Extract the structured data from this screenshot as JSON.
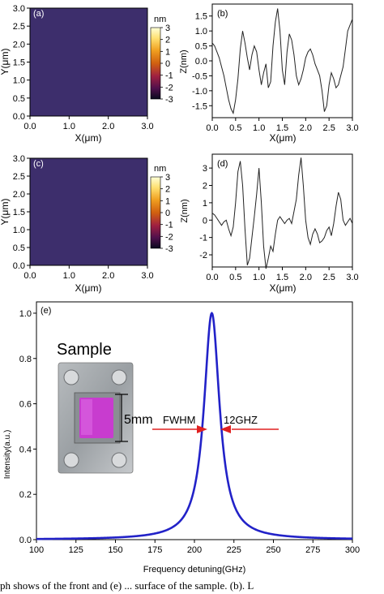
{
  "chart_data": [
    {
      "type": "heatmap",
      "panel_label": "(a)",
      "xlabel": "X(μm)",
      "ylabel": "Y(μm)",
      "xlim": [
        0,
        3
      ],
      "ylim": [
        0,
        3
      ],
      "xticks": [
        "0.0",
        "1.0",
        "2.0",
        "3.0"
      ],
      "yticks": [
        "0.0",
        "0.5",
        "1.0",
        "1.5",
        "2.0",
        "2.5",
        "3.0"
      ],
      "colorbar": {
        "unit": "nm",
        "range": [
          -3,
          3
        ],
        "ticks": [
          "3",
          "2",
          "1",
          "0",
          "-1",
          "-2",
          "-3"
        ]
      }
    },
    {
      "type": "line",
      "panel_label": "(b)",
      "xlabel": "X(μm)",
      "ylabel": "Z(nm)",
      "xlim": [
        0,
        3
      ],
      "ylim": [
        -1.9,
        1.9
      ],
      "xticks": [
        "0.0",
        "0.5",
        "1.0",
        "1.5",
        "2.0",
        "2.5",
        "3.0"
      ],
      "yticks": [
        "1.5",
        "1.0",
        "0.5",
        "0.0",
        "-0.5",
        "-1.0",
        "-1.5"
      ],
      "x": [
        0.0,
        0.05,
        0.1,
        0.15,
        0.2,
        0.25,
        0.3,
        0.35,
        0.4,
        0.45,
        0.5,
        0.55,
        0.6,
        0.65,
        0.7,
        0.75,
        0.8,
        0.85,
        0.9,
        0.95,
        1.0,
        1.05,
        1.1,
        1.15,
        1.2,
        1.25,
        1.3,
        1.35,
        1.4,
        1.45,
        1.5,
        1.55,
        1.6,
        1.65,
        1.7,
        1.75,
        1.8,
        1.85,
        1.9,
        1.95,
        2.0,
        2.05,
        2.1,
        2.15,
        2.2,
        2.25,
        2.3,
        2.35,
        2.4,
        2.45,
        2.5,
        2.55,
        2.6,
        2.65,
        2.7,
        2.75,
        2.8,
        2.85,
        2.9,
        2.95,
        3.0
      ],
      "y": [
        0.6,
        0.5,
        0.3,
        0.1,
        -0.2,
        -0.5,
        -0.9,
        -1.3,
        -1.6,
        -1.75,
        -1.3,
        -0.6,
        0.4,
        1.0,
        0.6,
        0.1,
        -0.3,
        0.2,
        0.5,
        0.3,
        -0.3,
        -0.8,
        -0.4,
        -0.1,
        -0.9,
        -0.7,
        0.5,
        1.3,
        1.75,
        1.0,
        -0.3,
        -0.8,
        0.3,
        0.9,
        0.7,
        0.2,
        -0.5,
        -0.8,
        -0.6,
        -0.3,
        0.1,
        0.3,
        0.4,
        0.2,
        -0.1,
        -0.3,
        -0.5,
        -1.0,
        -1.7,
        -1.5,
        -0.8,
        -0.4,
        -0.6,
        -0.9,
        -0.8,
        -0.5,
        -0.2,
        0.4,
        1.0,
        1.2,
        1.4
      ]
    },
    {
      "type": "heatmap",
      "panel_label": "(c)",
      "xlabel": "X(μm)",
      "ylabel": "Y(μm)",
      "xlim": [
        0,
        3
      ],
      "ylim": [
        0,
        3
      ],
      "xticks": [
        "0.0",
        "1.0",
        "2.0",
        "3.0"
      ],
      "yticks": [
        "0.0",
        "0.5",
        "1.0",
        "1.5",
        "2.0",
        "2.5",
        "3.0"
      ],
      "colorbar": {
        "unit": "nm",
        "range": [
          -3,
          3
        ],
        "ticks": [
          "3",
          "2",
          "1",
          "0",
          "-1",
          "-2",
          "-3"
        ]
      }
    },
    {
      "type": "line",
      "panel_label": "(d)",
      "xlabel": "X(μm)",
      "ylabel": "Z(nm)",
      "xlim": [
        0,
        3
      ],
      "ylim": [
        -2.7,
        3.8
      ],
      "xticks": [
        "0.0",
        "0.5",
        "1.0",
        "1.5",
        "2.0",
        "2.5",
        "3.0"
      ],
      "yticks": [
        "3",
        "2",
        "1",
        "0",
        "-1",
        "-2"
      ],
      "x": [
        0.0,
        0.05,
        0.1,
        0.15,
        0.2,
        0.25,
        0.3,
        0.35,
        0.4,
        0.45,
        0.5,
        0.55,
        0.6,
        0.65,
        0.7,
        0.75,
        0.8,
        0.85,
        0.9,
        0.95,
        1.0,
        1.05,
        1.1,
        1.15,
        1.2,
        1.25,
        1.3,
        1.35,
        1.4,
        1.45,
        1.5,
        1.55,
        1.6,
        1.65,
        1.7,
        1.75,
        1.8,
        1.85,
        1.9,
        1.95,
        2.0,
        2.05,
        2.1,
        2.15,
        2.2,
        2.25,
        2.3,
        2.35,
        2.4,
        2.45,
        2.5,
        2.55,
        2.6,
        2.65,
        2.7,
        2.75,
        2.8,
        2.85,
        2.9,
        2.95,
        3.0
      ],
      "y": [
        0.4,
        0.3,
        0.1,
        -0.1,
        -0.3,
        -0.1,
        0.0,
        -0.5,
        -0.9,
        -0.4,
        1.0,
        2.8,
        3.4,
        2.0,
        -0.5,
        -2.6,
        -2.2,
        -1.0,
        0.2,
        1.5,
        3.0,
        1.0,
        -1.5,
        -2.8,
        -2.2,
        -1.5,
        -1.8,
        -0.8,
        0.0,
        0.2,
        0.0,
        -0.2,
        0.0,
        0.1,
        -0.2,
        0.5,
        1.2,
        2.6,
        3.6,
        2.0,
        0.0,
        -1.0,
        -1.4,
        -0.8,
        -0.5,
        -0.8,
        -1.3,
        -1.2,
        -1.0,
        -0.6,
        -0.4,
        -0.9,
        -0.2,
        0.8,
        1.6,
        1.2,
        0.0,
        -0.3,
        -0.1,
        0.1,
        -0.2
      ]
    },
    {
      "type": "line",
      "panel_label": "(e)",
      "xlabel": "Frequency detuning(GHz)",
      "ylabel": "Intensity(a.u.)",
      "xlim": [
        100,
        300
      ],
      "ylim": [
        0,
        1.05
      ],
      "xticks": [
        "100",
        "125",
        "150",
        "175",
        "200",
        "225",
        "250",
        "275",
        "300"
      ],
      "yticks": [
        "0.0",
        "0.2",
        "0.4",
        "0.6",
        "0.8",
        "1.0"
      ],
      "series": [
        {
          "color": "#2222c8",
          "center": 211,
          "fwhm": 12
        }
      ],
      "annotations": [
        {
          "text": "Sample"
        },
        {
          "text": "5mm"
        },
        {
          "text": "FWHM"
        },
        {
          "text": "12GHZ"
        }
      ]
    }
  ],
  "caption": "ph shows of the front and (e) ... surface of the sample. (b). L"
}
